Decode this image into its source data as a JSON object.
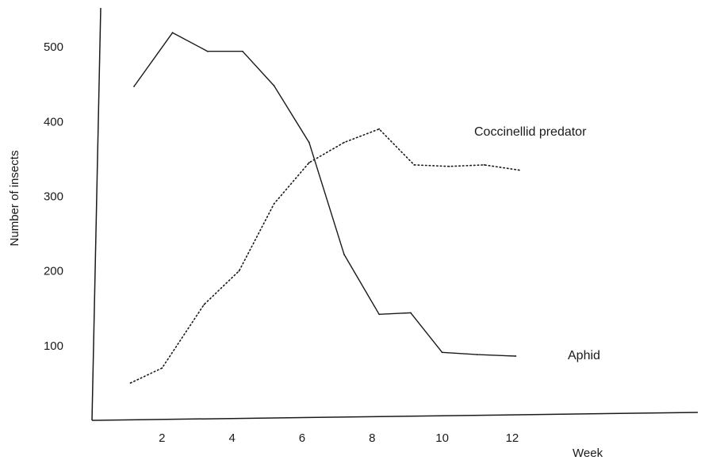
{
  "chart_data": {
    "type": "line",
    "title": "",
    "xlabel": "Week",
    "ylabel": "Number of insects",
    "xlim": [
      0,
      17.3
    ],
    "ylim": [
      0,
      550
    ],
    "x_ticks": [
      2,
      4,
      6,
      8,
      10,
      12
    ],
    "y_ticks": [
      100,
      200,
      300,
      400,
      500
    ],
    "x_tick_labels": [
      "2",
      "4",
      "6",
      "8",
      "10",
      "12"
    ],
    "y_tick_labels": [
      "100",
      "200",
      "300",
      "400",
      "500"
    ],
    "grid": false,
    "legend": "inline labels",
    "series": [
      {
        "name": "Aphid",
        "style": "solid",
        "color": "#1a1a1a",
        "x": [
          1.2,
          2.3,
          3.3,
          4.3,
          5.2,
          6.2,
          7.2,
          8.2,
          9.1,
          10.0,
          11.0,
          12.1
        ],
        "y": [
          447,
          519,
          494,
          494,
          448,
          372,
          222,
          142,
          144,
          91,
          88,
          86
        ]
      },
      {
        "name": "Coccinellid predator",
        "style": "dotted",
        "color": "#1a1a1a",
        "x": [
          1.1,
          2.0,
          3.2,
          4.2,
          5.2,
          6.2,
          7.2,
          8.2,
          9.2,
          10.2,
          11.2,
          12.2
        ],
        "y": [
          50,
          70,
          155,
          200,
          290,
          345,
          372,
          390,
          342,
          340,
          342,
          335
        ]
      }
    ]
  }
}
